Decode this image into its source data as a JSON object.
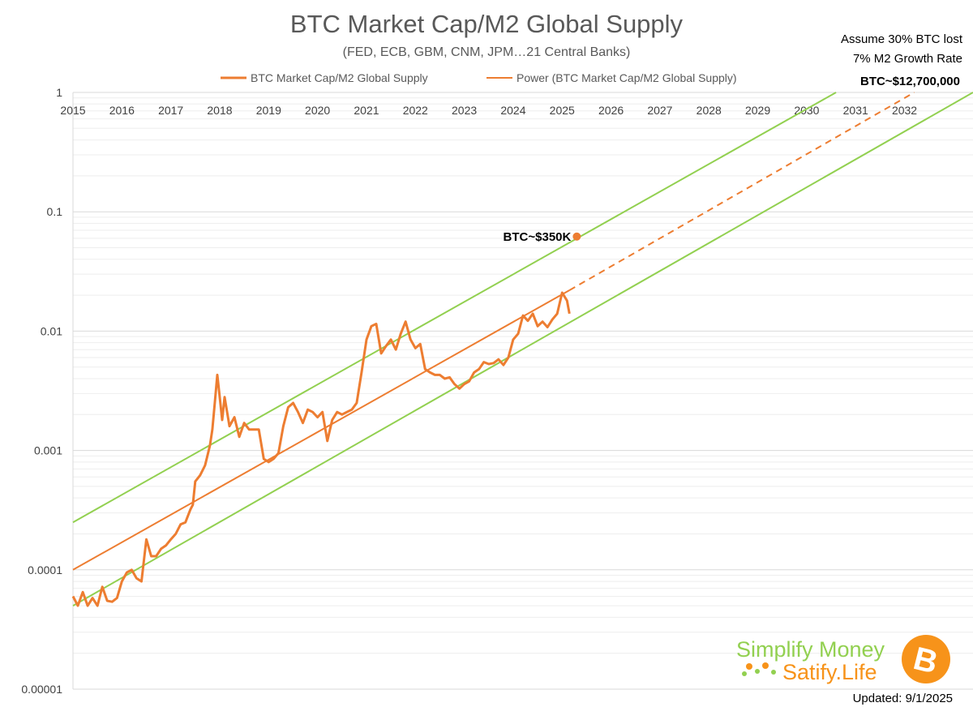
{
  "title": "BTC Market Cap/M2 Global Supply",
  "subtitle": "(FED, ECB, GBM, CNM, JPM…21 Central Banks)",
  "legend": {
    "series_label": "BTC Market Cap/M2 Global Supply",
    "trend_label": "Power (BTC Market Cap/M2 Global Supply)"
  },
  "annotations": {
    "assumption_line1": "Assume 30% BTC lost",
    "assumption_line2": "7% M2 Growth Rate",
    "target_2032": "BTC~$12,700,000",
    "target_2025": "BTC~$350K"
  },
  "branding": {
    "line1": "Simplify Money",
    "line2": "Satify.Life",
    "bitcoin_icon": "bitcoin-logo-icon",
    "bitcoin_symbol": "B",
    "updated": "Updated: 9/1/2025"
  },
  "colors": {
    "series": "#ed7d31",
    "bands": "#92d050",
    "grid": "#d9d9d9",
    "text": "#595959",
    "bitcoin": "#f7931a"
  },
  "chart_data": {
    "type": "line",
    "title": "BTC Market Cap/M2 Global Supply",
    "subtitle": "(FED, ECB, GBM, CNM, JPM…21 Central Banks)",
    "y_scale": "log",
    "ylim": [
      1e-05,
      1
    ],
    "y_ticks": [
      1,
      0.1,
      0.01,
      0.001,
      0.0001,
      1e-05
    ],
    "y_tick_labels": [
      "1",
      "0.1",
      "0.01",
      "0.001",
      "0.0001",
      "0.00001"
    ],
    "xlim": [
      2015,
      2033.4
    ],
    "x_ticks": [
      2015,
      2016,
      2017,
      2018,
      2019,
      2020,
      2021,
      2022,
      2023,
      2024,
      2025,
      2026,
      2027,
      2028,
      2029,
      2030,
      2031,
      2032
    ],
    "x_tick_labels": [
      "2015",
      "2016",
      "2017",
      "2018",
      "2019",
      "2020",
      "2021",
      "2022",
      "2023",
      "2024",
      "2025",
      "2026",
      "2027",
      "2028",
      "2029",
      "2030",
      "2031",
      "2032"
    ],
    "x_axis_position": "top",
    "grid": true,
    "legend_position": "top",
    "series": [
      {
        "name": "BTC Market Cap/M2 Global Supply",
        "color": "#ed7d31",
        "x": [
          2015.0,
          2015.1,
          2015.2,
          2015.3,
          2015.4,
          2015.5,
          2015.6,
          2015.7,
          2015.8,
          2015.9,
          2016.0,
          2016.1,
          2016.2,
          2016.3,
          2016.4,
          2016.5,
          2016.6,
          2016.7,
          2016.8,
          2016.9,
          2017.0,
          2017.1,
          2017.2,
          2017.3,
          2017.4,
          2017.45,
          2017.5,
          2017.6,
          2017.7,
          2017.8,
          2017.85,
          2017.9,
          2017.95,
          2018.0,
          2018.05,
          2018.1,
          2018.2,
          2018.3,
          2018.4,
          2018.5,
          2018.6,
          2018.7,
          2018.8,
          2018.9,
          2019.0,
          2019.1,
          2019.2,
          2019.3,
          2019.4,
          2019.5,
          2019.6,
          2019.7,
          2019.8,
          2019.9,
          2020.0,
          2020.1,
          2020.2,
          2020.3,
          2020.4,
          2020.5,
          2020.6,
          2020.7,
          2020.8,
          2020.9,
          2021.0,
          2021.1,
          2021.2,
          2021.3,
          2021.4,
          2021.5,
          2021.6,
          2021.7,
          2021.8,
          2021.9,
          2022.0,
          2022.1,
          2022.2,
          2022.3,
          2022.4,
          2022.5,
          2022.6,
          2022.7,
          2022.8,
          2022.9,
          2023.0,
          2023.1,
          2023.2,
          2023.3,
          2023.4,
          2023.5,
          2023.6,
          2023.7,
          2023.8,
          2023.9,
          2024.0,
          2024.1,
          2024.2,
          2024.3,
          2024.4,
          2024.5,
          2024.6,
          2024.7,
          2024.8,
          2024.9,
          2025.0,
          2025.1,
          2025.15
        ],
        "y": [
          6e-05,
          5e-05,
          6.5e-05,
          5e-05,
          5.8e-05,
          5e-05,
          7.2e-05,
          5.5e-05,
          5.4e-05,
          5.8e-05,
          8e-05,
          9.5e-05,
          0.0001,
          8.5e-05,
          8e-05,
          0.00018,
          0.00013,
          0.00013,
          0.00015,
          0.00016,
          0.00018,
          0.0002,
          0.00024,
          0.00025,
          0.00032,
          0.00035,
          0.00055,
          0.00062,
          0.00075,
          0.0011,
          0.0015,
          0.0025,
          0.0043,
          0.0028,
          0.0018,
          0.0028,
          0.0016,
          0.0019,
          0.0013,
          0.0017,
          0.0015,
          0.0015,
          0.0015,
          0.00085,
          0.0008,
          0.00085,
          0.00095,
          0.0016,
          0.0023,
          0.0025,
          0.0021,
          0.0017,
          0.0022,
          0.0021,
          0.0019,
          0.0021,
          0.0012,
          0.0018,
          0.0021,
          0.002,
          0.0021,
          0.0022,
          0.0025,
          0.0045,
          0.0085,
          0.011,
          0.0115,
          0.0065,
          0.0075,
          0.0085,
          0.007,
          0.0095,
          0.012,
          0.0085,
          0.0072,
          0.0078,
          0.0048,
          0.0045,
          0.0043,
          0.0043,
          0.004,
          0.0041,
          0.0036,
          0.0033,
          0.0036,
          0.0038,
          0.0045,
          0.0048,
          0.0055,
          0.0053,
          0.0054,
          0.0058,
          0.0052,
          0.006,
          0.0085,
          0.0095,
          0.0135,
          0.0122,
          0.014,
          0.011,
          0.012,
          0.0108,
          0.0125,
          0.014,
          0.021,
          0.018,
          0.014
        ]
      },
      {
        "name": "Power (BTC Market Cap/M2 Global Supply)",
        "color": "#ed7d31",
        "x": [
          2015.0,
          2025.15
        ],
        "y": [
          0.0001,
          0.022
        ]
      },
      {
        "color": "#ed7d31",
        "dashed": true,
        "x": [
          2025.15,
          2032.2
        ],
        "y": [
          0.022,
          1.0
        ]
      },
      {
        "color": "#92d050",
        "x": [
          2015.0,
          2030.6
        ],
        "y": [
          0.00025,
          1.0
        ]
      },
      {
        "color": "#92d050",
        "x": [
          2015.0,
          2033.4
        ],
        "y": [
          5e-05,
          1.0
        ]
      }
    ],
    "points": [
      {
        "label": "BTC~$350K",
        "x": 2025.3,
        "y": 0.062
      }
    ]
  }
}
